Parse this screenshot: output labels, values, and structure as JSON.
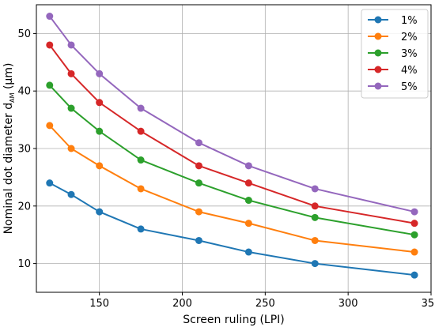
{
  "chart_data": {
    "type": "line",
    "title": "",
    "xlabel": "Screen ruling (LPI)",
    "ylabel_main": "Nominal dot diameter d",
    "ylabel_subscript": "AM",
    "ylabel_unit": " (μm)",
    "x": [
      120,
      133,
      150,
      175,
      210,
      240,
      280,
      340
    ],
    "xlim": [
      112,
      350
    ],
    "ylim": [
      5,
      55
    ],
    "xticks": [
      150,
      200,
      250,
      300,
      350
    ],
    "yticks": [
      10,
      20,
      30,
      40,
      50
    ],
    "grid": true,
    "legend_position": "top-right",
    "series": [
      {
        "name": "1%",
        "color": "#1f77b4",
        "values": [
          24,
          22,
          19,
          16,
          14,
          12,
          10,
          8
        ]
      },
      {
        "name": "2%",
        "color": "#ff7f0e",
        "values": [
          34,
          30,
          27,
          23,
          19,
          17,
          14,
          12
        ]
      },
      {
        "name": "3%",
        "color": "#2ca02c",
        "values": [
          41,
          37,
          33,
          28,
          24,
          21,
          18,
          15
        ]
      },
      {
        "name": "4%",
        "color": "#d62728",
        "values": [
          48,
          43,
          38,
          33,
          27,
          24,
          20,
          17
        ]
      },
      {
        "name": "5%",
        "color": "#9467bd",
        "values": [
          53,
          48,
          43,
          37,
          31,
          27,
          23,
          19
        ]
      }
    ]
  }
}
